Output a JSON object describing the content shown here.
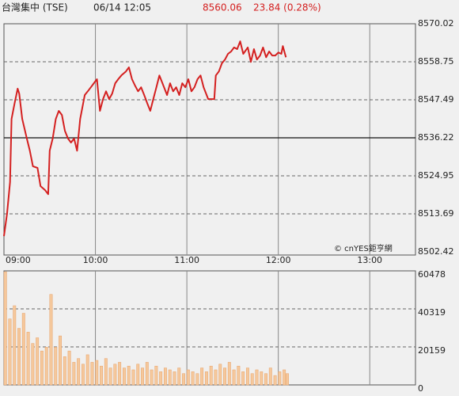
{
  "header": {
    "title": "台灣集中 (TSE)",
    "time": "06/14 12:05",
    "price": "8560.06",
    "change": "23.84 (0.28%)"
  },
  "chart_data": [
    {
      "type": "line",
      "color": "#d42020",
      "annotation": "© cnYES鉅亨網",
      "previous_close": 8536.22,
      "xlim": [
        0,
        270
      ],
      "xticks": [
        {
          "value": 0,
          "label": "09:00"
        },
        {
          "value": 60,
          "label": "10:00"
        },
        {
          "value": 120,
          "label": "11:00"
        },
        {
          "value": 180,
          "label": "12:00"
        },
        {
          "value": 240,
          "label": "13:00"
        }
      ],
      "ylim": [
        8502.42,
        8570.02
      ],
      "yticks": [
        8502.42,
        8513.69,
        8524.95,
        8536.22,
        8547.49,
        8558.75,
        8570.02
      ],
      "x": [
        0,
        2,
        4,
        5,
        7,
        9,
        10,
        12,
        15,
        17,
        19,
        22,
        24,
        27,
        29,
        30,
        32,
        34,
        36,
        38,
        40,
        42,
        44,
        46,
        48,
        50,
        53,
        55,
        57,
        59,
        61,
        63,
        65,
        67,
        69,
        71,
        73,
        75,
        77,
        80,
        82,
        84,
        86,
        88,
        90,
        92,
        94,
        96,
        98,
        100,
        102,
        104,
        107,
        109,
        111,
        113,
        115,
        117,
        119,
        121,
        123,
        125,
        127,
        129,
        131,
        134,
        136,
        138,
        139,
        141,
        143,
        145,
        147,
        149,
        151,
        153,
        155,
        157,
        160,
        162,
        164,
        166,
        168,
        170,
        172,
        174,
        176,
        178,
        180,
        182,
        183,
        185
      ],
      "values": [
        8507.1,
        8513.7,
        8523.1,
        8541.8,
        8546.5,
        8550.8,
        8549.3,
        8541.8,
        8536.0,
        8532.4,
        8527.8,
        8527.3,
        8521.9,
        8520.7,
        8519.5,
        8532.4,
        8536.0,
        8541.8,
        8544.2,
        8543.0,
        8538.3,
        8536.0,
        8534.8,
        8536.0,
        8532.4,
        8541.8,
        8548.9,
        8550.0,
        8551.2,
        8552.4,
        8553.6,
        8544.2,
        8547.7,
        8550.0,
        8547.7,
        8549.3,
        8552.4,
        8553.6,
        8554.7,
        8555.9,
        8557.1,
        8553.6,
        8551.7,
        8550.0,
        8551.2,
        8548.9,
        8546.5,
        8544.2,
        8547.7,
        8551.2,
        8554.7,
        8552.4,
        8548.9,
        8552.4,
        8550.0,
        8551.2,
        8548.9,
        8552.4,
        8551.2,
        8553.6,
        8550.0,
        8551.2,
        8553.6,
        8554.7,
        8551.2,
        8547.7,
        8547.7,
        8547.7,
        8554.7,
        8555.9,
        8558.3,
        8559.4,
        8561.1,
        8561.8,
        8563.0,
        8562.5,
        8564.8,
        8561.1,
        8563.0,
        8558.7,
        8562.5,
        8559.4,
        8560.6,
        8563.0,
        8560.1,
        8561.8,
        8560.6,
        8560.6,
        8561.5,
        8561.1,
        8563.4,
        8560.1
      ]
    },
    {
      "type": "bar",
      "color": "#f5c89c",
      "xlim": [
        0,
        270
      ],
      "ylim": [
        0,
        60478
      ],
      "yticks": [
        0,
        20159,
        40319,
        60478
      ],
      "x": [
        0,
        3,
        6,
        9,
        12,
        15,
        18,
        21,
        24,
        27,
        30,
        33,
        36,
        39,
        42,
        45,
        48,
        51,
        54,
        57,
        60,
        63,
        66,
        69,
        72,
        75,
        78,
        81,
        84,
        87,
        90,
        93,
        96,
        99,
        102,
        105,
        108,
        111,
        114,
        117,
        120,
        123,
        126,
        129,
        132,
        135,
        138,
        141,
        144,
        147,
        150,
        153,
        156,
        159,
        162,
        165,
        168,
        171,
        174,
        177,
        180,
        183,
        185
      ],
      "values": [
        60000,
        35000,
        42000,
        30000,
        38000,
        28000,
        22000,
        25000,
        18000,
        20000,
        48000,
        20000,
        26000,
        15000,
        18000,
        12000,
        14000,
        11000,
        16000,
        12000,
        13000,
        10000,
        14000,
        9000,
        11000,
        12000,
        9000,
        10000,
        8000,
        11000,
        9000,
        12000,
        8000,
        10000,
        7000,
        9000,
        8000,
        7000,
        9000,
        6000,
        8000,
        7000,
        6000,
        9000,
        7000,
        10000,
        8000,
        11000,
        9000,
        12000,
        8000,
        10000,
        7000,
        9000,
        6000,
        8000,
        7000,
        6000,
        9000,
        5000,
        7000,
        8000,
        6000
      ]
    }
  ]
}
